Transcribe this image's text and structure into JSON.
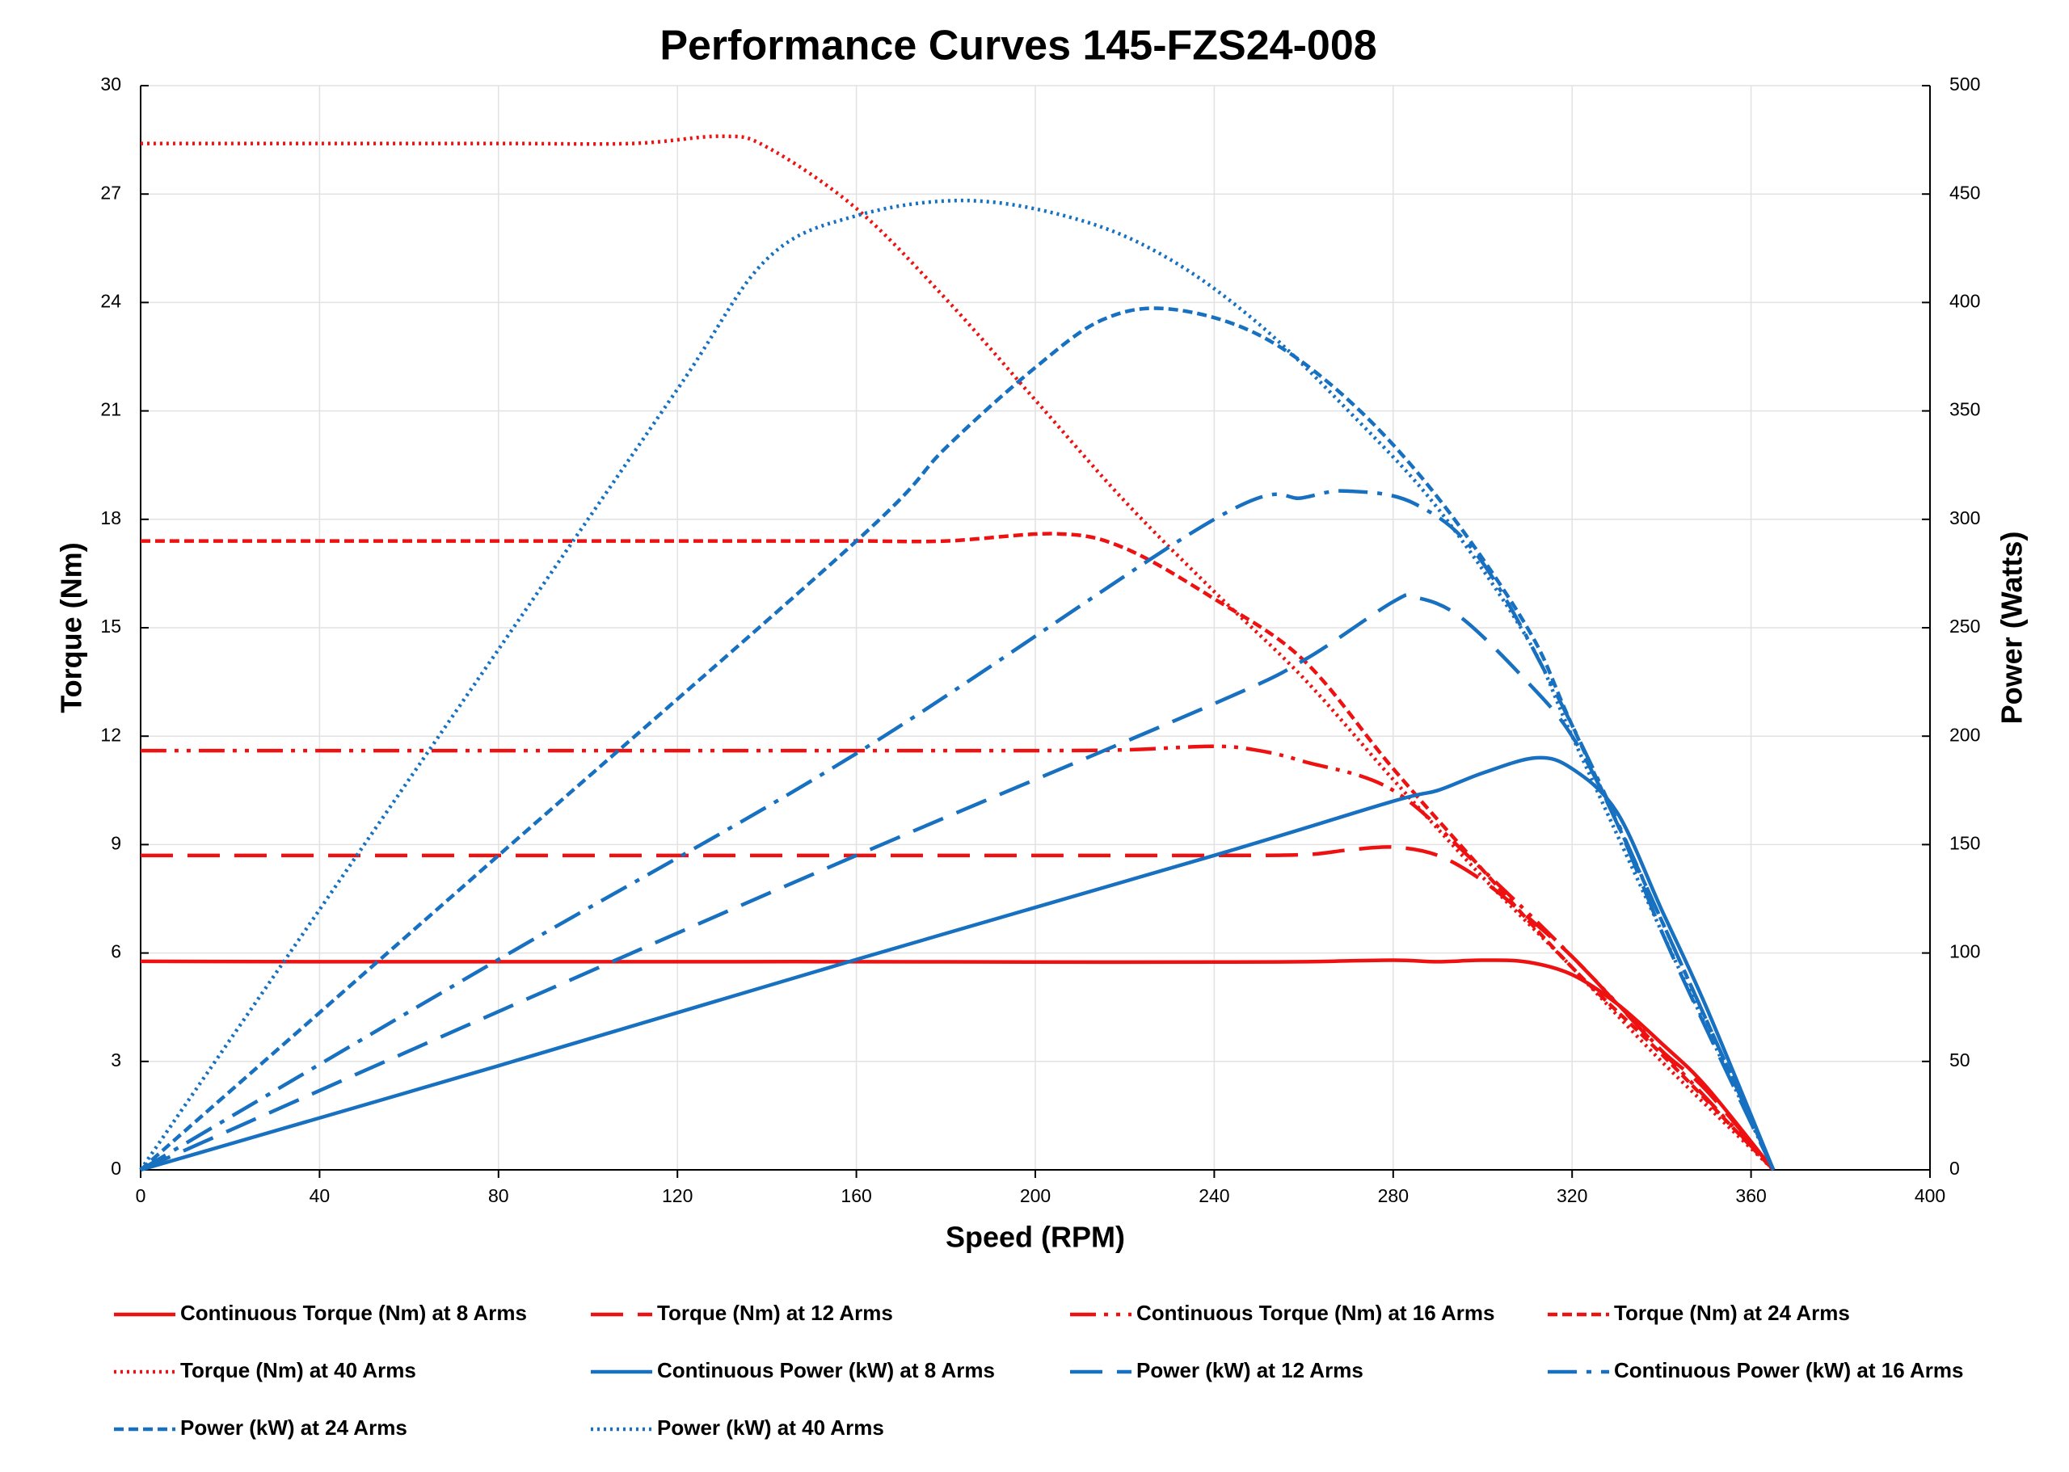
{
  "chart_data": {
    "type": "line",
    "title": "Performance Curves 145-FZS24-008",
    "x_label": "Speed (RPM)",
    "y_label": "Torque (Nm)",
    "y2_label": "Power (Watts)",
    "xlim": [
      0,
      400
    ],
    "xticks": [
      0,
      40,
      80,
      120,
      160,
      200,
      240,
      280,
      320,
      360,
      400
    ],
    "ylim": [
      0,
      30
    ],
    "yticks": [
      0,
      3,
      6,
      9,
      12,
      15,
      18,
      21,
      24,
      27,
      30
    ],
    "y2lim": [
      0,
      500
    ],
    "y2ticks": [
      0,
      50,
      100,
      150,
      200,
      250,
      300,
      350,
      400,
      450,
      500
    ],
    "grid": true,
    "legend": "bottom",
    "series": [
      {
        "name": "Continuous Torque (Nm) at 8 Arms",
        "color": "#ee1111",
        "dash": "solid",
        "x": [
          0,
          40,
          80,
          120,
          160,
          200,
          240,
          260,
          280,
          290,
          300,
          310,
          320,
          330,
          340,
          350,
          365
        ],
        "values": [
          5.77,
          5.76,
          5.76,
          5.76,
          5.76,
          5.75,
          5.75,
          5.76,
          5.8,
          5.76,
          5.8,
          5.75,
          5.4,
          4.6,
          3.5,
          2.3,
          0
        ]
      },
      {
        "name": "Torque (Nm) at 12 Arms",
        "color": "#ee1111",
        "dash": "long-dash",
        "x": [
          0,
          40,
          80,
          120,
          160,
          200,
          240,
          260,
          270,
          280,
          290,
          300,
          310,
          320,
          330,
          340,
          350,
          365
        ],
        "values": [
          8.7,
          8.7,
          8.7,
          8.7,
          8.7,
          8.7,
          8.7,
          8.72,
          8.85,
          8.93,
          8.7,
          8.0,
          7.0,
          5.9,
          4.6,
          3.3,
          2.2,
          0
        ]
      },
      {
        "name": "Continuous Torque (Nm) at 16 Arms",
        "color": "#ee1111",
        "dash": "dash-dot-dot",
        "x": [
          0,
          40,
          80,
          120,
          160,
          200,
          220,
          240,
          250,
          260,
          280,
          300,
          320,
          340,
          365
        ],
        "values": [
          11.6,
          11.6,
          11.6,
          11.6,
          11.6,
          11.6,
          11.62,
          11.72,
          11.6,
          11.3,
          10.5,
          8.3,
          5.9,
          3.3,
          0
        ]
      },
      {
        "name": "Torque (Nm) at 24 Arms",
        "color": "#ee1111",
        "dash": "dash",
        "x": [
          0,
          40,
          80,
          120,
          160,
          180,
          205,
          220,
          240,
          260,
          280,
          300,
          320,
          340,
          365
        ],
        "values": [
          17.4,
          17.4,
          17.4,
          17.4,
          17.4,
          17.4,
          17.6,
          17.2,
          15.8,
          14.1,
          11.1,
          8.3,
          5.6,
          3.2,
          0
        ]
      },
      {
        "name": "Torque (Nm) at 40 Arms",
        "color": "#ee1111",
        "dash": "dot",
        "x": [
          0,
          40,
          80,
          110,
          130,
          140,
          160,
          180,
          200,
          220,
          240,
          260,
          280,
          300,
          320,
          340,
          365
        ],
        "values": [
          28.4,
          28.4,
          28.4,
          28.4,
          28.6,
          28.3,
          26.6,
          24.1,
          21.3,
          18.5,
          16,
          13.6,
          10.8,
          8.1,
          5.6,
          3.0,
          0
        ]
      },
      {
        "name": "Continuous Power (kW) at 8 Arms",
        "color": "#1770c0",
        "dash": "solid",
        "axis": "y2",
        "x": [
          0,
          80,
          160,
          240,
          280,
          290,
          300,
          312,
          320,
          330,
          340,
          350,
          365
        ],
        "values": [
          0,
          48,
          97,
          145,
          170,
          175,
          183,
          190,
          185,
          165,
          120,
          75,
          0
        ]
      },
      {
        "name": "Power (kW) at 12 Arms",
        "color": "#1770c0",
        "dash": "long-dash",
        "axis": "y2",
        "x": [
          0,
          80,
          160,
          240,
          260,
          280,
          285,
          295,
          310,
          320,
          330,
          340,
          350,
          365
        ],
        "values": [
          0,
          73,
          145,
          215,
          235,
          262,
          264,
          255,
          225,
          200,
          160,
          110,
          65,
          0
        ]
      },
      {
        "name": "Continuous Power (kW) at 16 Arms",
        "color": "#1770c0",
        "dash": "dash-dot",
        "axis": "y2",
        "x": [
          0,
          80,
          160,
          240,
          260,
          270,
          285,
          300,
          320,
          340,
          365
        ],
        "values": [
          0,
          97,
          192,
          300,
          310,
          313,
          307,
          280,
          205,
          115,
          0
        ]
      },
      {
        "name": "Power (kW) at 24 Arms",
        "color": "#1770c0",
        "dash": "dash",
        "axis": "y2",
        "x": [
          0,
          80,
          160,
          180,
          200,
          215,
          230,
          250,
          270,
          290,
          310,
          320,
          340,
          365
        ],
        "values": [
          0,
          145,
          290,
          333,
          370,
          392,
          397,
          385,
          355,
          310,
          250,
          205,
          115,
          0
        ]
      },
      {
        "name": "Power (kW) at 40 Arms",
        "color": "#1770c0",
        "dash": "dot",
        "axis": "y2",
        "x": [
          0,
          40,
          80,
          120,
          140,
          160,
          185,
          210,
          230,
          250,
          270,
          290,
          310,
          320,
          340,
          365
        ],
        "values": [
          0,
          120,
          240,
          360,
          420,
          440,
          447,
          438,
          420,
          390,
          350,
          305,
          245,
          200,
          110,
          0
        ]
      }
    ]
  }
}
